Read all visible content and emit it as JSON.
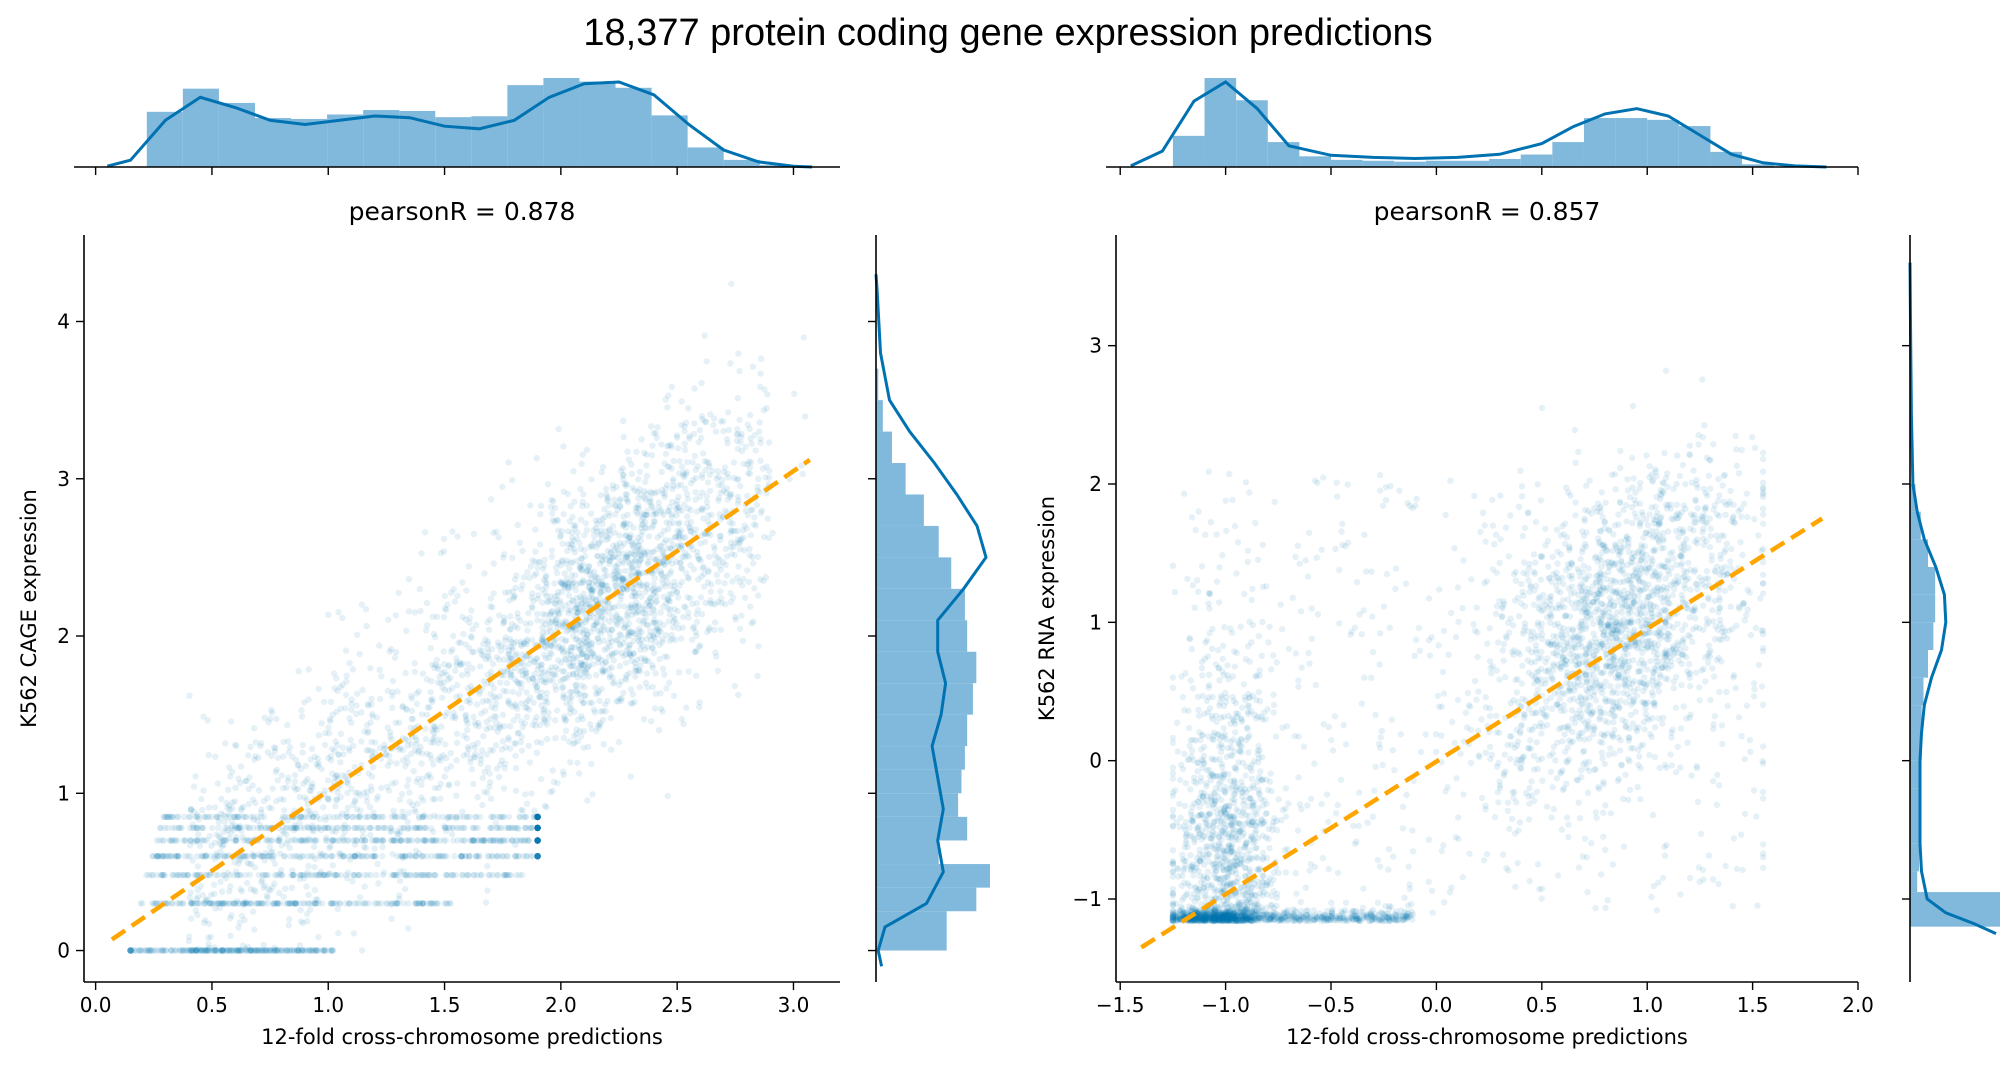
{
  "figure": {
    "title": "18,377 protein coding gene expression predictions",
    "colors": {
      "points": "#0072b2",
      "histogram": "#80b9dc",
      "kde": "#0072b2",
      "fit_line": "#ffa500"
    }
  },
  "chart_data": [
    {
      "type": "scatter",
      "title": "pearsonR = 0.878",
      "xlabel": "12-fold cross-chromosome predictions",
      "ylabel": "K562 CAGE expression",
      "xlim": [
        -0.05,
        3.2
      ],
      "ylim": [
        -0.2,
        4.55
      ],
      "xticks": [
        0.0,
        0.5,
        1.0,
        1.5,
        2.0,
        2.5,
        3.0
      ],
      "xtick_labels": [
        "0.0",
        "0.5",
        "1.0",
        "1.5",
        "2.0",
        "2.5",
        "3.0"
      ],
      "yticks": [
        0,
        1,
        2,
        3,
        4
      ],
      "ytick_labels": [
        "0",
        "1",
        "2",
        "3",
        "4"
      ],
      "pearson_r": 0.878,
      "fit_line": {
        "x": [
          0.07,
          3.07
        ],
        "y": [
          0.07,
          3.12
        ],
        "style": "dashed",
        "color": "#ffa500"
      },
      "point_alpha": 0.1,
      "marginal_x": {
        "bin_edges": [
          0.22,
          0.375,
          0.53,
          0.685,
          0.84,
          0.995,
          1.15,
          1.305,
          1.46,
          1.615,
          1.77,
          1.925,
          2.08,
          2.235,
          2.39,
          2.545,
          2.7,
          2.855,
          3.01
        ],
        "heights": [
          0.62,
          0.88,
          0.72,
          0.55,
          0.54,
          0.59,
          0.64,
          0.63,
          0.56,
          0.57,
          0.92,
          1.0,
          0.96,
          0.89,
          0.58,
          0.22,
          0.08,
          0.02
        ],
        "kde_x": [
          0.05,
          0.15,
          0.3,
          0.45,
          0.6,
          0.75,
          0.9,
          1.05,
          1.2,
          1.35,
          1.5,
          1.65,
          1.8,
          1.95,
          2.1,
          2.25,
          2.4,
          2.55,
          2.7,
          2.85,
          3.0,
          3.08
        ],
        "kde_y": [
          0.01,
          0.08,
          0.55,
          0.82,
          0.7,
          0.55,
          0.5,
          0.55,
          0.6,
          0.58,
          0.48,
          0.45,
          0.55,
          0.82,
          0.98,
          1.0,
          0.85,
          0.5,
          0.2,
          0.06,
          0.01,
          0.0
        ]
      },
      "marginal_y": {
        "bin_edges": [
          0.0,
          0.25,
          0.4,
          0.55,
          0.7,
          0.85,
          1.0,
          1.15,
          1.3,
          1.5,
          1.7,
          1.9,
          2.1,
          2.3,
          2.5,
          2.7,
          2.9,
          3.1,
          3.3,
          3.5,
          3.7
        ],
        "heights": [
          0.62,
          0.88,
          1.0,
          0.55,
          0.8,
          0.72,
          0.75,
          0.78,
          0.8,
          0.85,
          0.88,
          0.8,
          0.78,
          0.66,
          0.55,
          0.42,
          0.26,
          0.14,
          0.06,
          0.02
        ],
        "kde_y": [
          -0.1,
          0.0,
          0.15,
          0.3,
          0.5,
          0.7,
          0.9,
          1.1,
          1.3,
          1.5,
          1.7,
          1.9,
          2.1,
          2.3,
          2.5,
          2.7,
          2.9,
          3.1,
          3.3,
          3.5,
          3.8,
          4.2,
          4.3
        ],
        "kde_x": [
          0.05,
          0.02,
          0.08,
          0.45,
          0.6,
          0.55,
          0.6,
          0.55,
          0.5,
          0.58,
          0.62,
          0.55,
          0.55,
          0.78,
          0.98,
          0.9,
          0.72,
          0.52,
          0.3,
          0.12,
          0.04,
          0.01,
          0.0
        ]
      }
    },
    {
      "type": "scatter",
      "title": "pearsonR = 0.857",
      "xlabel": "12-fold cross-chromosome predictions",
      "ylabel": "K562 RNA expression",
      "xlim": [
        -1.52,
        2.0
      ],
      "ylim": [
        -1.6,
        3.8
      ],
      "xticks": [
        -1.5,
        -1.0,
        -0.5,
        0.0,
        0.5,
        1.0,
        1.5,
        2.0
      ],
      "xtick_labels": [
        "−1.5",
        "−1.0",
        "−0.5",
        "0.0",
        "0.5",
        "1.0",
        "1.5",
        "2.0"
      ],
      "yticks": [
        -1,
        0,
        1,
        2,
        3
      ],
      "ytick_labels": [
        "−1",
        "0",
        "1",
        "2",
        "3"
      ],
      "pearson_r": 0.857,
      "fit_line": {
        "x": [
          -1.4,
          1.83
        ],
        "y": [
          -1.35,
          1.75
        ],
        "style": "dashed",
        "color": "#ffa500"
      },
      "point_alpha": 0.1,
      "marginal_x": {
        "bin_edges": [
          -1.25,
          -1.1,
          -0.95,
          -0.8,
          -0.65,
          -0.5,
          -0.35,
          -0.2,
          -0.05,
          0.1,
          0.25,
          0.4,
          0.55,
          0.7,
          0.85,
          1.0,
          1.15,
          1.3,
          1.45,
          1.6
        ],
        "heights": [
          0.35,
          1.0,
          0.75,
          0.28,
          0.12,
          0.08,
          0.07,
          0.06,
          0.07,
          0.07,
          0.09,
          0.14,
          0.28,
          0.55,
          0.55,
          0.53,
          0.46,
          0.17,
          0.03
        ],
        "kde_x": [
          -1.45,
          -1.3,
          -1.15,
          -1.0,
          -0.85,
          -0.7,
          -0.5,
          -0.3,
          -0.1,
          0.1,
          0.3,
          0.5,
          0.65,
          0.8,
          0.95,
          1.1,
          1.25,
          1.4,
          1.55,
          1.7,
          1.85
        ],
        "kde_y": [
          0.01,
          0.15,
          0.62,
          0.8,
          0.55,
          0.2,
          0.11,
          0.09,
          0.08,
          0.09,
          0.12,
          0.22,
          0.38,
          0.5,
          0.55,
          0.48,
          0.3,
          0.12,
          0.04,
          0.01,
          0.0
        ]
      },
      "marginal_y": {
        "bin_edges": [
          -1.2,
          -0.95,
          -0.8,
          -0.6,
          -0.4,
          -0.2,
          0.0,
          0.2,
          0.4,
          0.6,
          0.8,
          1.0,
          1.2,
          1.4,
          1.6,
          1.8,
          2.0
        ],
        "heights": [
          1.0,
          0.08,
          0.1,
          0.11,
          0.11,
          0.12,
          0.13,
          0.13,
          0.15,
          0.2,
          0.26,
          0.28,
          0.28,
          0.2,
          0.12,
          0.06
        ],
        "kde_y": [
          -1.25,
          -1.18,
          -1.1,
          -1.0,
          -0.8,
          -0.6,
          -0.4,
          -0.2,
          0.0,
          0.2,
          0.4,
          0.6,
          0.8,
          1.0,
          1.2,
          1.4,
          1.6,
          1.8,
          2.0,
          2.5,
          3.0,
          3.6
        ],
        "kde_x": [
          0.6,
          0.45,
          0.25,
          0.12,
          0.08,
          0.07,
          0.07,
          0.07,
          0.07,
          0.08,
          0.1,
          0.15,
          0.22,
          0.25,
          0.24,
          0.18,
          0.1,
          0.05,
          0.02,
          0.01,
          0.005,
          0.0
        ]
      }
    }
  ]
}
